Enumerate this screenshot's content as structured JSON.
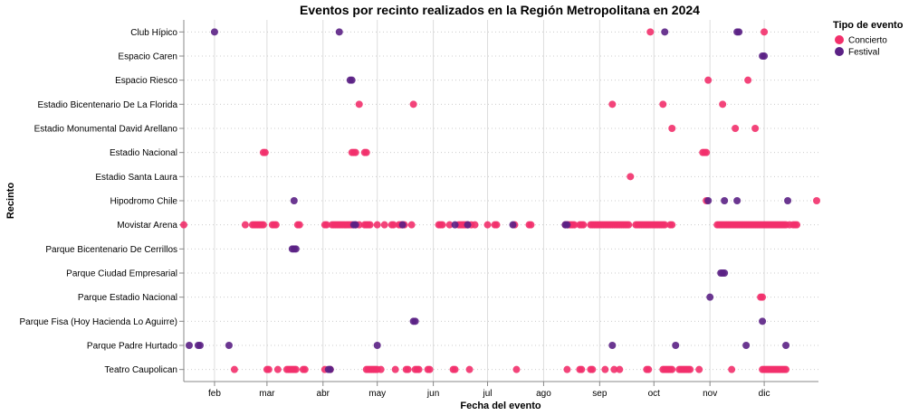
{
  "chart_data": {
    "type": "scatter",
    "title": "Eventos por recinto realizados en la Región Metropolitana en 2024",
    "xlabel": "Fecha del evento",
    "ylabel": "Recinto",
    "x_is_date": true,
    "xlim": [
      "2024-01-15",
      "2024-12-31"
    ],
    "x_ticks": [
      {
        "date": "2024-02-01",
        "label": "feb"
      },
      {
        "date": "2024-03-01",
        "label": "mar"
      },
      {
        "date": "2024-04-01",
        "label": "abr"
      },
      {
        "date": "2024-05-01",
        "label": "may"
      },
      {
        "date": "2024-06-01",
        "label": "jun"
      },
      {
        "date": "2024-07-01",
        "label": "jul"
      },
      {
        "date": "2024-08-01",
        "label": "ago"
      },
      {
        "date": "2024-09-01",
        "label": "sep"
      },
      {
        "date": "2024-10-01",
        "label": "oct"
      },
      {
        "date": "2024-11-01",
        "label": "nov"
      },
      {
        "date": "2024-12-01",
        "label": "dic"
      }
    ],
    "categories": [
      "Club Hípico",
      "Espacio Caren",
      "Espacio Riesco",
      "Estadio Bicentenario De La Florida",
      "Estadio Monumental David Arellano",
      "Estadio Nacional",
      "Estadio Santa Laura",
      "Hipodromo Chile",
      "Movistar Arena",
      "Parque Bicentenario De Cerrillos",
      "Parque Ciudad Empresarial",
      "Parque Estadio Nacional",
      "Parque Fisa (Hoy Hacienda Lo Aguirre)",
      "Parque Padre Hurtado",
      "Teatro Caupolican"
    ],
    "grid": true,
    "legend": {
      "title": "Tipo de evento",
      "position": "top-right",
      "entries": [
        {
          "name": "Concierto",
          "color": "#f2306b"
        },
        {
          "name": "Festival",
          "color": "#5b2185"
        }
      ]
    },
    "series": [
      {
        "name": "Concierto",
        "color": "#f2306b",
        "points": [
          {
            "venue": "Club Hípico",
            "dates": [
              "2024-09-29",
              "2024-12-01"
            ]
          },
          {
            "venue": "Espacio Riesco",
            "dates": [
              "2024-10-31",
              "2024-11-22"
            ]
          },
          {
            "venue": "Estadio Bicentenario De La Florida",
            "dates": [
              "2024-04-21",
              "2024-05-21",
              "2024-09-08",
              "2024-10-06",
              "2024-11-08"
            ]
          },
          {
            "venue": "Estadio Monumental David Arellano",
            "dates": [
              "2024-10-11",
              "2024-11-15",
              "2024-11-26"
            ]
          },
          {
            "venue": "Estadio Nacional",
            "dates": [
              "2024-02-28",
              "2024-02-29",
              "2024-04-17",
              "2024-04-18",
              "2024-04-19",
              "2024-04-24",
              "2024-04-25",
              "2024-10-28",
              "2024-10-29",
              "2024-10-30"
            ]
          },
          {
            "venue": "Estadio Santa Laura",
            "dates": [
              "2024-09-18"
            ]
          },
          {
            "venue": "Hipodromo Chile",
            "dates": [
              "2024-10-30",
              "2024-12-30"
            ]
          },
          {
            "venue": "Movistar Arena",
            "dates": [
              "2024-01-15",
              "2024-02-18",
              "2024-02-22",
              "2024-02-23",
              "2024-02-24",
              "2024-02-25",
              "2024-02-26",
              "2024-02-27",
              "2024-02-28",
              "2024-03-04",
              "2024-03-05",
              "2024-03-06",
              "2024-03-18",
              "2024-03-19",
              "2024-04-02",
              "2024-04-03",
              "2024-04-06",
              "2024-04-07",
              "2024-04-08",
              "2024-04-09",
              "2024-04-10",
              "2024-04-11",
              "2024-04-12",
              "2024-04-13",
              "2024-04-14",
              "2024-04-15",
              "2024-04-16",
              "2024-04-17",
              "2024-04-19",
              "2024-04-21",
              "2024-04-24",
              "2024-04-25",
              "2024-04-26",
              "2024-04-27",
              "2024-05-01",
              "2024-05-05",
              "2024-05-09",
              "2024-05-10",
              "2024-05-13",
              "2024-05-14",
              "2024-05-15",
              "2024-05-16",
              "2024-05-20",
              "2024-06-04",
              "2024-06-05",
              "2024-06-06",
              "2024-06-10",
              "2024-06-15",
              "2024-06-16",
              "2024-06-17",
              "2024-06-18",
              "2024-06-19",
              "2024-06-20",
              "2024-06-22",
              "2024-06-24",
              "2024-07-01",
              "2024-07-05",
              "2024-07-06",
              "2024-07-16",
              "2024-07-24",
              "2024-07-25",
              "2024-08-13",
              "2024-08-14",
              "2024-08-15",
              "2024-08-16",
              "2024-08-17",
              "2024-08-18",
              "2024-08-21",
              "2024-08-22",
              "2024-08-23",
              "2024-08-27",
              "2024-08-28",
              "2024-08-29",
              "2024-08-30",
              "2024-08-31",
              "2024-09-01",
              "2024-09-02",
              "2024-09-03",
              "2024-09-04",
              "2024-09-05",
              "2024-09-06",
              "2024-09-07",
              "2024-09-08",
              "2024-09-09",
              "2024-09-10",
              "2024-09-11",
              "2024-09-12",
              "2024-09-13",
              "2024-09-14",
              "2024-09-15",
              "2024-09-16",
              "2024-09-17",
              "2024-09-21",
              "2024-09-22",
              "2024-09-23",
              "2024-09-24",
              "2024-09-25",
              "2024-09-26",
              "2024-09-27",
              "2024-09-28",
              "2024-09-29",
              "2024-09-30",
              "2024-10-01",
              "2024-10-02",
              "2024-10-03",
              "2024-10-04",
              "2024-10-05",
              "2024-10-06",
              "2024-10-07",
              "2024-10-10",
              "2024-10-11",
              "2024-11-05",
              "2024-11-06",
              "2024-11-07",
              "2024-11-08",
              "2024-11-09",
              "2024-11-10",
              "2024-11-11",
              "2024-11-12",
              "2024-11-13",
              "2024-11-14",
              "2024-11-15",
              "2024-11-16",
              "2024-11-17",
              "2024-11-18",
              "2024-11-19",
              "2024-11-20",
              "2024-11-21",
              "2024-11-22",
              "2024-11-23",
              "2024-11-24",
              "2024-11-25",
              "2024-11-26",
              "2024-11-27",
              "2024-11-28",
              "2024-11-29",
              "2024-11-30",
              "2024-12-01",
              "2024-12-02",
              "2024-12-03",
              "2024-12-04",
              "2024-12-05",
              "2024-12-06",
              "2024-12-07",
              "2024-12-08",
              "2024-12-09",
              "2024-12-10",
              "2024-12-11",
              "2024-12-12",
              "2024-12-13",
              "2024-12-15",
              "2024-12-17",
              "2024-12-18",
              "2024-12-19"
            ]
          },
          {
            "venue": "Parque Estadio Nacional",
            "dates": [
              "2024-11-29",
              "2024-11-30"
            ]
          },
          {
            "venue": "Teatro Caupolican",
            "dates": [
              "2024-02-12",
              "2024-03-01",
              "2024-03-02",
              "2024-03-07",
              "2024-03-12",
              "2024-03-13",
              "2024-03-14",
              "2024-03-15",
              "2024-03-16",
              "2024-03-17",
              "2024-03-21",
              "2024-03-22",
              "2024-04-02",
              "2024-04-05",
              "2024-04-25",
              "2024-04-26",
              "2024-04-27",
              "2024-04-28",
              "2024-04-29",
              "2024-04-30",
              "2024-05-01",
              "2024-05-03",
              "2024-05-11",
              "2024-05-17",
              "2024-05-18",
              "2024-05-22",
              "2024-05-23",
              "2024-05-24",
              "2024-05-29",
              "2024-05-30",
              "2024-06-12",
              "2024-06-13",
              "2024-06-21",
              "2024-07-17",
              "2024-08-14",
              "2024-08-21",
              "2024-08-22",
              "2024-08-27",
              "2024-08-28",
              "2024-09-04",
              "2024-09-09",
              "2024-09-12",
              "2024-09-27",
              "2024-09-28",
              "2024-10-06",
              "2024-10-07",
              "2024-10-08",
              "2024-10-09",
              "2024-10-10",
              "2024-10-11",
              "2024-10-15",
              "2024-10-16",
              "2024-10-17",
              "2024-10-18",
              "2024-10-19",
              "2024-10-20",
              "2024-10-21",
              "2024-10-26",
              "2024-11-13",
              "2024-11-30",
              "2024-12-01",
              "2024-12-02",
              "2024-12-03",
              "2024-12-04",
              "2024-12-05",
              "2024-12-06",
              "2024-12-07",
              "2024-12-08",
              "2024-12-09",
              "2024-12-10",
              "2024-12-11",
              "2024-12-12",
              "2024-12-13"
            ]
          }
        ]
      },
      {
        "name": "Festival",
        "color": "#5b2185",
        "points": [
          {
            "venue": "Club Hípico",
            "dates": [
              "2024-02-01",
              "2024-04-10",
              "2024-10-07",
              "2024-11-16",
              "2024-11-17"
            ]
          },
          {
            "venue": "Espacio Caren",
            "dates": [
              "2024-11-30",
              "2024-12-01"
            ]
          },
          {
            "venue": "Espacio Riesco",
            "dates": [
              "2024-04-16",
              "2024-04-17"
            ]
          },
          {
            "venue": "Estadio Nacional",
            "dates": []
          },
          {
            "venue": "Hipodromo Chile",
            "dates": [
              "2024-03-16",
              "2024-10-31",
              "2024-11-09",
              "2024-11-16",
              "2024-12-14"
            ]
          },
          {
            "venue": "Movistar Arena",
            "dates": [
              "2024-04-18",
              "2024-04-19",
              "2024-05-15",
              "2024-06-13",
              "2024-06-20",
              "2024-07-15",
              "2024-08-13",
              "2024-08-14"
            ]
          },
          {
            "venue": "Parque Bicentenario De Cerrillos",
            "dates": [
              "2024-03-15",
              "2024-03-16",
              "2024-03-17"
            ]
          },
          {
            "venue": "Parque Ciudad Empresarial",
            "dates": [
              "2024-11-07",
              "2024-11-08",
              "2024-11-09"
            ]
          },
          {
            "venue": "Parque Estadio Nacional",
            "dates": [
              "2024-11-01"
            ]
          },
          {
            "venue": "Parque Fisa (Hoy Hacienda Lo Aguirre)",
            "dates": [
              "2024-05-21",
              "2024-05-22",
              "2024-11-30"
            ]
          },
          {
            "venue": "Parque Padre Hurtado",
            "dates": [
              "2024-01-18",
              "2024-01-23",
              "2024-01-24",
              "2024-02-09",
              "2024-05-01",
              "2024-09-08",
              "2024-10-13",
              "2024-11-21",
              "2024-12-13"
            ]
          },
          {
            "venue": "Teatro Caupolican",
            "dates": [
              "2024-04-04",
              "2024-04-05"
            ]
          }
        ]
      }
    ]
  }
}
